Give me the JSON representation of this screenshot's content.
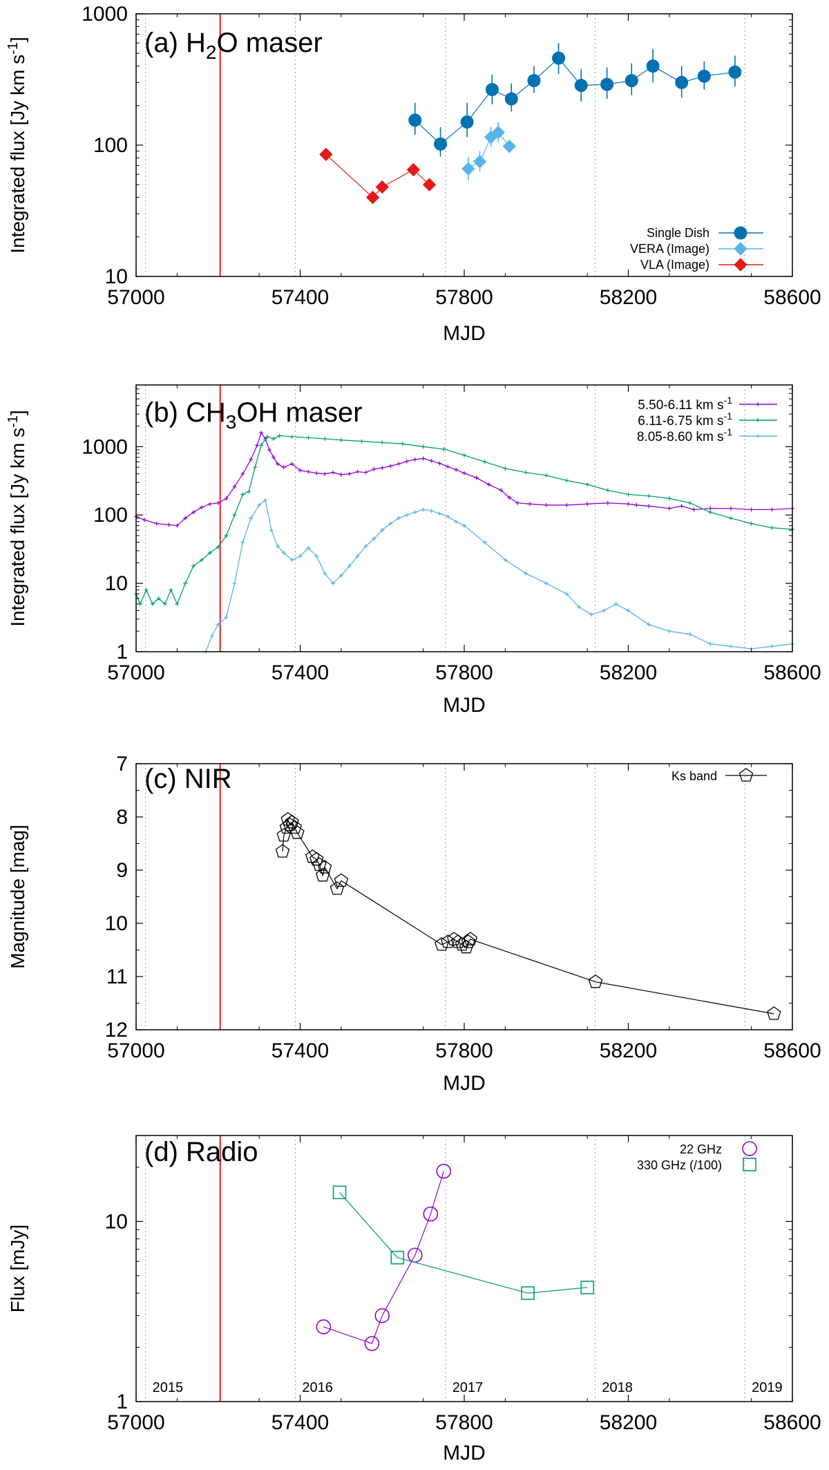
{
  "chart_data": [
    {
      "type": "scatter",
      "title": "(a) H2O maser",
      "title_parts": {
        "pre": "(a) H",
        "sub": "2",
        "post": "O maser"
      },
      "xlabel": "MJD",
      "ylabel": "Integrated flux [Jy km s-1]",
      "ylabel_parts": {
        "main": "Integrated flux [Jy km s",
        "sup": "-1",
        "close": "]"
      },
      "xlim": [
        57000,
        58600
      ],
      "ylim": [
        10,
        1000
      ],
      "yscale": "log",
      "xticks": [
        57000,
        57400,
        57800,
        58200,
        58600
      ],
      "xtick_labels": [
        "57000",
        "57400",
        "57800",
        "58200",
        "58600"
      ],
      "yticks": [
        10,
        100,
        1000
      ],
      "ytick_labels": [
        "10",
        "100",
        "1000"
      ],
      "vlines_dotted": [
        57023,
        57388,
        57754,
        58119,
        58484
      ],
      "event_line": 57205,
      "legend_position": "bottom-right",
      "series": [
        {
          "name": "Single Dish",
          "color": "#0072b2",
          "marker": "circle",
          "x": [
            57680,
            57742,
            57807,
            57868,
            57915,
            57970,
            58030,
            58085,
            58148,
            58208,
            58260,
            58330,
            58385,
            58460
          ],
          "y": [
            155,
            102,
            150,
            265,
            225,
            310,
            460,
            285,
            290,
            310,
            400,
            300,
            335,
            360
          ],
          "err_lo": [
            35,
            20,
            35,
            60,
            45,
            60,
            110,
            70,
            65,
            70,
            100,
            70,
            70,
            80
          ],
          "err_hi": [
            55,
            35,
            60,
            80,
            70,
            90,
            140,
            95,
            100,
            110,
            140,
            100,
            100,
            120
          ]
        },
        {
          "name": "VERA (Image)",
          "color": "#56b4e9",
          "marker": "diamond",
          "x": [
            57810,
            57838,
            57865,
            57883,
            57910
          ],
          "y": [
            66,
            75,
            115,
            125,
            98
          ],
          "err_lo": [
            12,
            12,
            18,
            20,
            10
          ],
          "err_hi": [
            15,
            15,
            22,
            25,
            12
          ]
        },
        {
          "name": "VLA (Image)",
          "color": "#e41a1c",
          "marker": "diamond",
          "x": [
            57463,
            57577,
            57600,
            57676,
            57715
          ],
          "y": [
            85,
            40,
            48,
            65,
            50
          ]
        }
      ]
    },
    {
      "type": "line",
      "title": "(b) CH3OH maser",
      "title_parts": {
        "pre": "(b) CH",
        "sub": "3",
        "post": "OH maser"
      },
      "xlabel": "MJD",
      "ylabel": "Integrated flux [Jy km s-1]",
      "ylabel_parts": {
        "main": "Integrated flux [Jy km s",
        "sup": "-1",
        "close": "]"
      },
      "xlim": [
        57000,
        58600
      ],
      "ylim": [
        1,
        8000
      ],
      "yscale": "log",
      "xticks": [
        57000,
        57400,
        57800,
        58200,
        58600
      ],
      "xtick_labels": [
        "57000",
        "57400",
        "57800",
        "58200",
        "58600"
      ],
      "yticks": [
        1,
        10,
        100,
        1000
      ],
      "ytick_labels": [
        "1",
        "10",
        "100",
        "1000"
      ],
      "vlines_dotted": [
        57023,
        57388,
        57754,
        58119,
        58484
      ],
      "event_line": 57205,
      "legend_position": "top-right",
      "series": [
        {
          "name": "5.50-6.11 km s-1",
          "label_parts": {
            "main": "5.50-6.11 km s",
            "sup": "-1"
          },
          "color": "#9400d3",
          "x": [
            57000,
            57020,
            57050,
            57080,
            57100,
            57120,
            57140,
            57160,
            57180,
            57200,
            57220,
            57240,
            57260,
            57280,
            57295,
            57305,
            57315,
            57325,
            57335,
            57345,
            57360,
            57380,
            57400,
            57420,
            57440,
            57460,
            57480,
            57500,
            57520,
            57540,
            57560,
            57580,
            57600,
            57620,
            57640,
            57660,
            57680,
            57700,
            57720,
            57740,
            57760,
            57780,
            57800,
            57830,
            57860,
            57890,
            57910,
            57930,
            57960,
            58000,
            58050,
            58100,
            58150,
            58200,
            58220,
            58250,
            58300,
            58330,
            58360,
            58400,
            58450,
            58500,
            58550,
            58600
          ],
          "y": [
            95,
            85,
            75,
            72,
            70,
            90,
            110,
            130,
            145,
            150,
            175,
            260,
            400,
            650,
            1050,
            1600,
            1300,
            900,
            700,
            560,
            500,
            560,
            450,
            430,
            410,
            400,
            420,
            390,
            400,
            430,
            420,
            470,
            490,
            520,
            560,
            610,
            650,
            670,
            620,
            570,
            510,
            460,
            410,
            350,
            280,
            230,
            180,
            150,
            145,
            140,
            140,
            145,
            150,
            145,
            140,
            135,
            125,
            135,
            120,
            125,
            125,
            120,
            120,
            125
          ]
        },
        {
          "name": "6.11-6.75 km s-1",
          "label_parts": {
            "main": "6.11-6.75 km s",
            "sup": "-1"
          },
          "color": "#009e73",
          "x": [
            57000,
            57010,
            57025,
            57040,
            57055,
            57070,
            57085,
            57100,
            57120,
            57140,
            57160,
            57180,
            57200,
            57220,
            57240,
            57260,
            57275,
            57290,
            57305,
            57320,
            57335,
            57350,
            57380,
            57420,
            57460,
            57500,
            57550,
            57600,
            57650,
            57700,
            57750,
            57800,
            57850,
            57900,
            57950,
            58000,
            58050,
            58100,
            58150,
            58200,
            58250,
            58300,
            58350,
            58400,
            58450,
            58500,
            58550,
            58600
          ],
          "y": [
            7,
            5,
            8,
            5,
            6,
            5,
            8,
            5,
            10,
            18,
            22,
            28,
            34,
            50,
            100,
            200,
            220,
            500,
            1050,
            1400,
            1300,
            1450,
            1400,
            1350,
            1300,
            1250,
            1200,
            1150,
            1100,
            1000,
            920,
            750,
            600,
            480,
            420,
            380,
            320,
            280,
            230,
            200,
            190,
            175,
            150,
            110,
            90,
            75,
            65,
            62
          ]
        },
        {
          "name": "8.05-8.60 km s-1",
          "label_parts": {
            "main": "8.05-8.60 km s",
            "sup": "-1"
          },
          "color": "#56b4e9",
          "x": [
            57170,
            57185,
            57200,
            57220,
            57240,
            57260,
            57280,
            57300,
            57315,
            57330,
            57345,
            57360,
            57380,
            57400,
            57420,
            57440,
            57460,
            57480,
            57500,
            57520,
            57540,
            57560,
            57580,
            57600,
            57620,
            57640,
            57660,
            57680,
            57700,
            57720,
            57740,
            57760,
            57780,
            57800,
            57850,
            57900,
            57950,
            58000,
            58050,
            58080,
            58110,
            58140,
            58170,
            58200,
            58250,
            58300,
            58350,
            58400,
            58450,
            58500,
            58550,
            58600
          ],
          "y": [
            1,
            1.7,
            2.5,
            3.2,
            10,
            40,
            90,
            140,
            165,
            60,
            35,
            28,
            22,
            25,
            33,
            25,
            14,
            10,
            13,
            18,
            25,
            35,
            45,
            60,
            75,
            90,
            100,
            110,
            120,
            115,
            105,
            95,
            80,
            70,
            40,
            22,
            14,
            10,
            7,
            4.5,
            3.5,
            4,
            5,
            4,
            2.5,
            2,
            1.8,
            1.3,
            1.2,
            1.1,
            1.2,
            1.3
          ]
        }
      ]
    },
    {
      "type": "scatter",
      "title": "(c) NIR",
      "xlabel": "MJD",
      "ylabel": "Magnitude [mag]",
      "xlim": [
        57000,
        58600
      ],
      "ylim": [
        12,
        7
      ],
      "yscale": "linear",
      "xticks": [
        57000,
        57400,
        57800,
        58200,
        58600
      ],
      "xtick_labels": [
        "57000",
        "57400",
        "57800",
        "58200",
        "58600"
      ],
      "yticks": [
        7,
        8,
        9,
        10,
        11,
        12
      ],
      "ytick_labels": [
        "7",
        "8",
        "9",
        "10",
        "11",
        "12"
      ],
      "vlines_dotted": [
        57023,
        57388,
        57754,
        58119,
        58484
      ],
      "event_line": 57205,
      "legend_position": "top-right",
      "series": [
        {
          "name": "Ks band",
          "color": "#000000",
          "marker": "pentagon",
          "x": [
            57357,
            57360,
            57367,
            57370,
            57375,
            57380,
            57387,
            57393,
            57430,
            57440,
            57447,
            57455,
            57460,
            57490,
            57500,
            57745,
            57760,
            57775,
            57785,
            57795,
            57805,
            57810,
            57815,
            58120,
            58555
          ],
          "y": [
            8.65,
            8.35,
            8.2,
            8.05,
            8.15,
            8.1,
            8.2,
            8.3,
            8.75,
            8.8,
            8.9,
            9.1,
            8.95,
            9.35,
            9.2,
            10.4,
            10.35,
            10.3,
            10.35,
            10.4,
            10.45,
            10.35,
            10.3,
            11.1,
            11.7
          ]
        }
      ]
    },
    {
      "type": "scatter",
      "title": "(d) Radio",
      "xlabel": "MJD",
      "ylabel": "Flux [mJy]",
      "xlim": [
        57000,
        58600
      ],
      "ylim": [
        1,
        30
      ],
      "yscale": "log",
      "xticks": [
        57000,
        57400,
        57800,
        58200,
        58600
      ],
      "xtick_labels": [
        "57000",
        "57400",
        "57800",
        "58200",
        "58600"
      ],
      "yticks": [
        1,
        10
      ],
      "ytick_labels": [
        "1",
        "10"
      ],
      "vlines_dotted": [
        57023,
        57388,
        57754,
        58119,
        58484
      ],
      "year_labels": [
        "2015",
        "2016",
        "2017",
        "2018",
        "2019"
      ],
      "event_line": 57205,
      "legend_position": "top-right",
      "series": [
        {
          "name": "22 GHz",
          "color": "#9400d3",
          "marker": "circle",
          "x": [
            57457,
            57575,
            57600,
            57680,
            57718,
            57750
          ],
          "y": [
            2.6,
            2.1,
            3.0,
            6.5,
            11.0,
            19.0
          ]
        },
        {
          "name": "330 GHz (/100)",
          "color": "#009e73",
          "marker": "square",
          "x": [
            57496,
            57637,
            57955,
            58100
          ],
          "y": [
            14.5,
            6.3,
            4.0,
            4.3
          ]
        }
      ]
    }
  ]
}
